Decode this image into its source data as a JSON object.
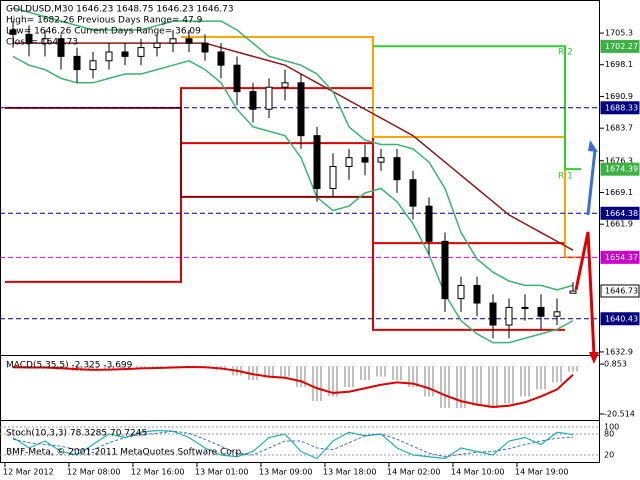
{
  "chart_data": {
    "type": "candlestick",
    "title": "GOLDUSD,M30  1646.23 1648.75 1646.23 1646.73",
    "header_lines": [
      "High= 1682.26   Previous Days Range= 47.9",
      "Low= 1646.26   Current Days Range= 36.09",
      "Close= 1646.73"
    ],
    "copyright": "BMF-Meta, © 2001-2011 MetaQuotes Software Corp.",
    "annotations": [
      "R 2",
      "R 1"
    ],
    "categories": [
      "12 Mar 2012",
      null,
      null,
      null,
      "12 Mar 08:00",
      null,
      null,
      null,
      "12 Mar 16:00",
      null,
      null,
      null,
      "13 Mar 01:00",
      null,
      null,
      null,
      "13 Mar 09:00",
      null,
      null,
      null,
      "13 Mar 18:00",
      null,
      null,
      null,
      "14 Mar 02:00",
      null,
      null,
      null,
      "14 Mar 10:00",
      null,
      null,
      null,
      "14 Mar 19:00",
      null,
      null,
      null
    ],
    "open": [
      1706,
      1705,
      1703,
      1704,
      1700,
      1697,
      1699,
      1701,
      1700,
      1702,
      1703,
      1704,
      1703,
      1701,
      1698,
      1692,
      1688,
      1693,
      1694,
      1682,
      1670,
      1675,
      1677,
      1676,
      1677,
      1672,
      1666,
      1658,
      1645,
      1648,
      1644,
      1639,
      1643,
      1643,
      1641,
      1646.23
    ],
    "high": [
      1708,
      1707,
      1706,
      1705,
      1702,
      1701,
      1703,
      1703,
      1704,
      1705,
      1706,
      1706,
      1705,
      1703,
      1700,
      1694,
      1695,
      1697,
      1696,
      1684,
      1678,
      1679,
      1680,
      1679,
      1679,
      1674,
      1668,
      1660,
      1650,
      1650,
      1646,
      1645,
      1646,
      1646,
      1645,
      1648.75
    ],
    "low": [
      1702,
      1700,
      1700,
      1697,
      1694,
      1695,
      1697,
      1698,
      1698,
      1700,
      1701,
      1701,
      1699,
      1695,
      1689,
      1685,
      1686,
      1690,
      1679,
      1667,
      1668,
      1672,
      1673,
      1674,
      1669,
      1663,
      1655,
      1642,
      1642,
      1641,
      1636,
      1636,
      1640,
      1638,
      1639,
      1646.23
    ],
    "close": [
      1705,
      1703,
      1704,
      1700,
      1697,
      1699,
      1701,
      1700,
      1702,
      1703,
      1704,
      1703,
      1701,
      1698,
      1692,
      1688,
      1693,
      1694,
      1682,
      1670,
      1675,
      1677,
      1676,
      1677,
      1672,
      1666,
      1658,
      1645,
      1648,
      1644,
      1639,
      1643,
      1643,
      1641,
      1642,
      1646.73
    ],
    "ylim": [
      1632.2,
      1712.8
    ],
    "yticks": [
      1705.3,
      1698.1,
      1690.9,
      1683.7,
      1676.3,
      1669.1,
      1661.9,
      1632.9
    ],
    "price_labels": [
      {
        "value": 1702.27,
        "color": "#3cb043",
        "dashed": false
      },
      {
        "value": 1688.33,
        "color": "#000080",
        "dashed": true
      },
      {
        "value": 1674.39,
        "color": "#3cb043",
        "dashed": false
      },
      {
        "value": 1664.38,
        "color": "#000080",
        "dashed": true
      },
      {
        "value": 1654.37,
        "color": "#cc00cc",
        "dashed": true
      },
      {
        "value": 1646.73,
        "color": "#ffffff",
        "dashed": false
      },
      {
        "value": 1640.43,
        "color": "#000080",
        "dashed": true
      }
    ],
    "lines": [
      {
        "color": "#8b1a1a",
        "values": [
          1703,
          1703,
          1703,
          1703,
          1703,
          1703,
          1703,
          1703,
          1703,
          1703,
          1703,
          1703,
          1703,
          1702,
          1701,
          1700,
          1699,
          1698,
          1696,
          1694,
          1692,
          1690,
          1688,
          1686,
          1684,
          1682,
          1679,
          1676,
          1673,
          1670,
          1667,
          1664,
          1662,
          1660,
          1658,
          1656
        ]
      },
      {
        "color": "#3cb371",
        "values": [
          1711,
          1710,
          1709,
          1708,
          1707,
          1706,
          1706,
          1706,
          1706,
          1707,
          1708,
          1708,
          1708,
          1708,
          1706,
          1703,
          1700,
          1699,
          1698,
          1696,
          1692,
          1684,
          1681,
          1680,
          1680,
          1679,
          1676,
          1670,
          1660,
          1654,
          1651,
          1649,
          1648,
          1648,
          1647,
          1648
        ]
      },
      {
        "color": "#3cb371",
        "values": [
          1700,
          1698,
          1697,
          1695,
          1694,
          1694,
          1695,
          1696,
          1696,
          1697,
          1698,
          1699,
          1697,
          1694,
          1688,
          1684,
          1683,
          1682,
          1677,
          1668,
          1665,
          1666,
          1669,
          1670,
          1667,
          1662,
          1655,
          1646,
          1640,
          1637,
          1635,
          1635,
          1636,
          1637,
          1638,
          1640
        ]
      }
    ],
    "levels": [
      {
        "color": "#dd0000",
        "values": [
          1648.8,
          1648.8,
          1648.8,
          1648.8,
          1648.8,
          1648.8,
          1648.8,
          1648.8,
          1648.8,
          1648.8,
          1648.8,
          1692.8,
          1692.8,
          1692.8,
          1692.8,
          1692.8,
          1692.8,
          1692.8,
          1692.8,
          1692.8,
          1692.8,
          1692.8,
          1692.8,
          1657.6,
          1657.6,
          1657.6,
          1657.6,
          1657.6,
          1657.6,
          1657.6,
          1657.6,
          1657.6,
          1657.6,
          1657.6,
          1657.6,
          null
        ]
      },
      {
        "color": "#dd0000",
        "values": [
          null,
          null,
          null,
          null,
          null,
          null,
          null,
          null,
          null,
          null,
          null,
          1680.3,
          1680.3,
          1680.3,
          1680.3,
          1680.3,
          1680.3,
          1680.3,
          1680.3,
          1680.3,
          1680.3,
          1680.3,
          1680.3,
          1637.9,
          1637.9,
          1637.9,
          1637.9,
          1637.9,
          1637.9,
          1637.9,
          1637.9,
          1637.9,
          1637.9,
          1637.9,
          1637.9,
          null
        ]
      },
      {
        "color": "#8b0000",
        "values": [
          1688.3,
          1688.3,
          1688.3,
          1688.3,
          1688.3,
          1688.3,
          1688.3,
          1688.3,
          1688.3,
          1688.3,
          1688.3,
          1668.1,
          1668.1,
          1668.1,
          1668.1,
          1668.1,
          1668.1,
          1668.1,
          1668.1,
          1668.1,
          1668.1,
          1668.1,
          1668.1,
          null,
          null,
          null,
          null,
          null,
          null,
          null,
          null,
          null,
          null,
          null,
          null,
          null
        ]
      },
      {
        "color": "#ffa500",
        "values": [
          null,
          null,
          null,
          null,
          null,
          null,
          null,
          null,
          null,
          null,
          null,
          1704.4,
          1704.4,
          1704.4,
          1704.4,
          1704.4,
          1704.4,
          1704.4,
          1704.4,
          1704.4,
          1704.4,
          1704.4,
          1704.4,
          1681.7,
          1681.7,
          1681.7,
          1681.7,
          1681.7,
          1681.7,
          1681.7,
          1681.7,
          1681.7,
          1681.7,
          1681.7,
          1681.7,
          1654.4
        ]
      },
      {
        "color": "#32cd32",
        "values": [
          null,
          null,
          null,
          null,
          null,
          null,
          null,
          null,
          null,
          null,
          null,
          null,
          null,
          null,
          null,
          null,
          null,
          null,
          null,
          null,
          null,
          null,
          null,
          1702.3,
          1702.3,
          1702.3,
          1702.3,
          1702.3,
          1702.3,
          1702.3,
          1702.3,
          1702.3,
          1702.3,
          1702.3,
          1702.3,
          1674.4
        ]
      }
    ],
    "macd": {
      "title": "MACD(5,35,5) -2.325 -3.699",
      "ylim": [
        -23.1,
        3.9
      ],
      "yticks": [
        0.853,
        -20.514
      ],
      "values": [
        -0.5,
        -0.8,
        -0.6,
        -1.5,
        -2.2,
        -2,
        -1.2,
        -1,
        -0.6,
        -0.4,
        -0.2,
        -0.3,
        -0.8,
        -1.8,
        -4,
        -6,
        -5,
        -4.5,
        -9,
        -15,
        -13,
        -9,
        -6,
        -4.5,
        -6,
        -9,
        -13,
        -18,
        -18,
        -17,
        -18,
        -16,
        -13,
        -10,
        -7,
        -2.325
      ],
      "signal": [
        -0.5,
        -0.6,
        -0.6,
        -0.9,
        -1.3,
        -1.6,
        -1.5,
        -1.3,
        -1,
        -0.8,
        -0.6,
        -0.4,
        -0.5,
        -1,
        -2,
        -3.5,
        -4.5,
        -5,
        -6.5,
        -9.5,
        -11.5,
        -11,
        -9.5,
        -8,
        -7,
        -7.5,
        -9.5,
        -12.5,
        -15,
        -16.5,
        -17.5,
        -17,
        -15.5,
        -13,
        -10,
        -3.699
      ],
      "color": "#c0c0c0",
      "signal_color": "#dd0000"
    },
    "stoch": {
      "title": "Stoch(10,3,3) 78.3285 70.7245",
      "ylim": [
        0,
        100
      ],
      "yticks": [
        100,
        80,
        20
      ],
      "main": [
        70,
        40,
        60,
        30,
        20,
        50,
        80,
        70,
        85,
        90,
        88,
        70,
        40,
        20,
        15,
        30,
        70,
        80,
        30,
        10,
        60,
        85,
        75,
        80,
        40,
        20,
        15,
        10,
        40,
        30,
        20,
        60,
        70,
        50,
        85,
        78.3285
      ],
      "signal": [
        65,
        55,
        50,
        45,
        35,
        35,
        55,
        70,
        78,
        82,
        88,
        82,
        65,
        45,
        25,
        20,
        40,
        60,
        60,
        40,
        35,
        55,
        75,
        80,
        65,
        45,
        25,
        15,
        22,
        28,
        30,
        38,
        50,
        60,
        68,
        70.7245
      ],
      "color": "#20b2aa",
      "signal_color": "#3a6fd8"
    }
  }
}
